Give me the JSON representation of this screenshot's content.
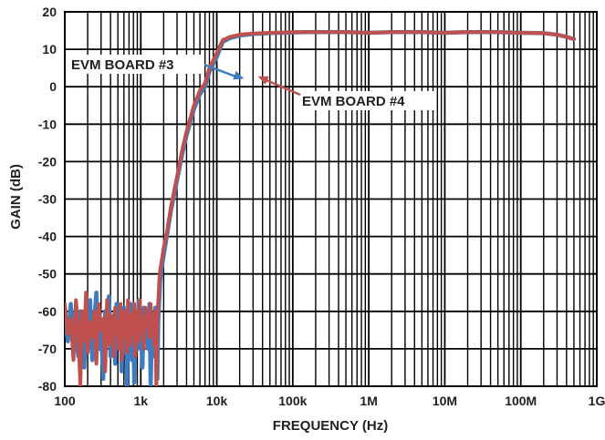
{
  "chart_data": {
    "type": "line",
    "title": "",
    "xlabel": "FREQUENCY (Hz)",
    "ylabel": "GAIN (dB)",
    "xscale": "log",
    "xlim": [
      100,
      1000000000
    ],
    "ylim": [
      -80,
      20
    ],
    "grid": true,
    "xtick_labels": [
      "100",
      "1k",
      "10k",
      "100k",
      "1M",
      "10M",
      "100M",
      "1G"
    ],
    "ytick_labels": [
      "20",
      "10",
      "0",
      "-10",
      "-20",
      "-30",
      "-40",
      "-50",
      "-60",
      "-70",
      "-80"
    ],
    "colors": {
      "evm3": "#3d7cc0",
      "evm4": "#c0504d",
      "grid": "#000000"
    },
    "annotations": [
      {
        "id": "evm3",
        "text": "EVM BOARD #3",
        "points_to": [
          24000,
          2
        ]
      },
      {
        "id": "evm4",
        "text": "EVM BOARD #4",
        "points_to": [
          33000,
          3
        ]
      }
    ],
    "series": [
      {
        "name": "EVM BOARD #3",
        "color": "#3d7cc0",
        "x": [
          100,
          110,
          120,
          130,
          140,
          150,
          160,
          170,
          180,
          190,
          200,
          215,
          230,
          245,
          260,
          280,
          300,
          320,
          340,
          360,
          380,
          400,
          420,
          440,
          460,
          480,
          500,
          520,
          540,
          560,
          580,
          600,
          620,
          640,
          660,
          680,
          700,
          730,
          760,
          790,
          820,
          850,
          880,
          910,
          940,
          970,
          1000,
          1050,
          1100,
          1150,
          1200,
          1250,
          1300,
          1350,
          1400,
          1450,
          1500,
          1550,
          1600,
          1650,
          1700,
          1750,
          1800,
          1900,
          2000,
          2200,
          2500,
          3000,
          3500,
          4000,
          5000,
          6000,
          7000,
          8000,
          10000,
          12000,
          15000,
          20000,
          25000,
          30000,
          40000,
          50000,
          60000,
          70000,
          80000,
          100000,
          150000,
          200000,
          300000,
          500000,
          1000000,
          2000000,
          5000000,
          10000000,
          20000000,
          50000000,
          100000000,
          200000000,
          300000000,
          400000000,
          500000000
        ],
        "y": [
          -62,
          -68,
          -58,
          -70,
          -64,
          -72,
          -60,
          -66,
          -75,
          -63,
          -69,
          -57,
          -73,
          -62,
          -55,
          -70,
          -65,
          -78,
          -60,
          -68,
          -56,
          -72,
          -64,
          -61,
          -74,
          -58,
          -69,
          -66,
          -60,
          -76,
          -63,
          -59,
          -71,
          -65,
          -80,
          -62,
          -67,
          -58,
          -73,
          -61,
          -79,
          -64,
          -60,
          -70,
          -57,
          -66,
          -62,
          -75,
          -59,
          -68,
          -63,
          -70,
          -58,
          -80,
          -65,
          -61,
          -72,
          -59,
          -66,
          -78,
          -62,
          -57,
          -52,
          -48,
          -45,
          -40,
          -33,
          -25,
          -18,
          -13,
          -6,
          -2,
          0,
          4,
          8,
          12,
          13,
          13.7,
          13.9,
          14.1,
          14.2,
          14.3,
          14.4,
          14.4,
          14.4,
          14.5,
          14.6,
          14.6,
          14.6,
          14.6,
          14.4,
          14.6,
          14.6,
          14.4,
          14.6,
          14.6,
          14.4,
          14.3,
          13.9,
          13.3,
          12.7
        ]
      },
      {
        "name": "EVM BOARD #4",
        "color": "#c0504d",
        "x": [
          100,
          110,
          120,
          130,
          140,
          150,
          160,
          170,
          180,
          190,
          200,
          215,
          230,
          245,
          260,
          280,
          300,
          320,
          340,
          360,
          380,
          400,
          420,
          440,
          460,
          480,
          500,
          520,
          540,
          560,
          580,
          600,
          620,
          640,
          660,
          680,
          700,
          730,
          760,
          790,
          820,
          850,
          880,
          910,
          940,
          970,
          1000,
          1050,
          1100,
          1150,
          1200,
          1250,
          1300,
          1350,
          1400,
          1450,
          1500,
          1550,
          1600,
          1650,
          1700,
          1750,
          1800,
          1900,
          2000,
          2200,
          2500,
          3000,
          3500,
          4000,
          5000,
          6000,
          7000,
          8000,
          10000,
          12000,
          15000,
          20000,
          25000,
          30000,
          40000,
          50000,
          60000,
          70000,
          80000,
          100000,
          150000,
          200000,
          300000,
          500000,
          1000000,
          2000000,
          5000000,
          10000000,
          20000000,
          50000000,
          100000000,
          200000000,
          300000000,
          400000000,
          500000000
        ],
        "y": [
          -58,
          -66,
          -62,
          -73,
          -57,
          -64,
          -80,
          -60,
          -68,
          -55,
          -71,
          -63,
          -67,
          -60,
          -74,
          -58,
          -65,
          -62,
          -76,
          -57,
          -69,
          -61,
          -64,
          -72,
          -59,
          -66,
          -63,
          -70,
          -58,
          -73,
          -65,
          -60,
          -67,
          -62,
          -71,
          -57,
          -64,
          -69,
          -61,
          -66,
          -58,
          -72,
          -63,
          -60,
          -68,
          -57,
          -65,
          -62,
          -70,
          -59,
          -64,
          -61,
          -67,
          -58,
          -66,
          -63,
          -69,
          -60,
          -80,
          -62,
          -57,
          -52,
          -49,
          -46,
          -43,
          -39,
          -32,
          -24,
          -17,
          -12,
          -5,
          -1,
          1,
          5,
          9,
          12.5,
          13.3,
          13.9,
          14.1,
          14.2,
          14.3,
          14.4,
          14.4,
          14.5,
          14.5,
          14.6,
          14.6,
          14.6,
          14.6,
          14.6,
          14.4,
          14.6,
          14.6,
          14.4,
          14.6,
          14.6,
          14.4,
          14.3,
          13.9,
          13.3,
          12.7
        ]
      }
    ]
  }
}
